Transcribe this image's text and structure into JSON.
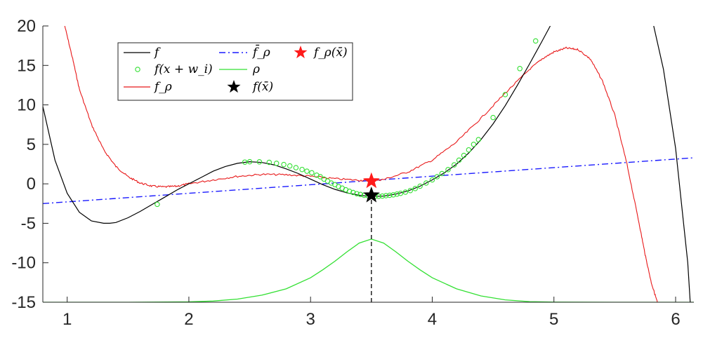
{
  "chart_data": {
    "type": "line",
    "title": "",
    "xlabel": "",
    "ylabel": "",
    "xlim": [
      0.8,
      6.15
    ],
    "ylim": [
      -15,
      20
    ],
    "xticks": [
      1,
      2,
      3,
      4,
      5,
      6
    ],
    "yticks": [
      20,
      15,
      10,
      5,
      0,
      -5,
      -10,
      -15
    ],
    "grid": false,
    "legend_placement": "top-left",
    "x_bar": 3.5,
    "series": [
      {
        "name": "f",
        "legend": "f",
        "color": "#000000",
        "style": "solid",
        "x": [
          0.8,
          0.9,
          1.0,
          1.1,
          1.2,
          1.3,
          1.35,
          1.4,
          1.5,
          1.6,
          1.7,
          1.8,
          1.9,
          2.0,
          2.1,
          2.2,
          2.3,
          2.4,
          2.5,
          2.6,
          2.7,
          2.8,
          2.9,
          3.0,
          3.1,
          3.2,
          3.3,
          3.4,
          3.5,
          3.6,
          3.7,
          3.8,
          3.9,
          4.0,
          4.1,
          4.2,
          4.3,
          4.4,
          4.5,
          4.6,
          4.7,
          4.8,
          4.9,
          4.97
        ],
        "y": [
          9.8,
          3.0,
          -1.2,
          -3.6,
          -4.7,
          -5.0,
          -5.0,
          -4.9,
          -4.3,
          -3.5,
          -2.6,
          -1.7,
          -0.8,
          0.0,
          0.8,
          1.6,
          2.2,
          2.6,
          2.8,
          2.7,
          2.4,
          1.9,
          1.3,
          0.6,
          -0.1,
          -0.7,
          -1.15,
          -1.45,
          -1.6,
          -1.55,
          -1.3,
          -0.9,
          -0.3,
          0.5,
          1.4,
          2.5,
          3.9,
          5.6,
          7.6,
          9.9,
          12.5,
          15.2,
          18.0,
          20.0
        ]
      },
      {
        "name": "f-right",
        "legend": "",
        "color": "#000000",
        "style": "solid",
        "x": [
          5.82,
          5.9,
          6.0,
          6.1,
          6.12
        ],
        "y": [
          20.0,
          14.5,
          4.5,
          -10.0,
          -15.0
        ]
      },
      {
        "name": "f_rho",
        "legend": "f_ρ",
        "color": "#e8191a",
        "style": "solid",
        "x": [
          0.98,
          1.05,
          1.1,
          1.2,
          1.3,
          1.4,
          1.5,
          1.6,
          1.7,
          1.8,
          1.9,
          2.0,
          2.2,
          2.4,
          2.6,
          2.8,
          3.0,
          3.2,
          3.4,
          3.5,
          3.6,
          3.8,
          4.0,
          4.2,
          4.4,
          4.6,
          4.8,
          4.9,
          5.0,
          5.1,
          5.2,
          5.3,
          5.4,
          5.5,
          5.6,
          5.7,
          5.75,
          5.8,
          5.85
        ],
        "y": [
          20.0,
          15.5,
          12.0,
          7.5,
          4.3,
          2.2,
          0.9,
          0.1,
          -0.3,
          -0.4,
          -0.3,
          0.0,
          0.5,
          0.95,
          1.2,
          1.15,
          0.95,
          0.65,
          0.45,
          0.4,
          0.55,
          1.5,
          3.0,
          5.3,
          8.3,
          11.5,
          14.5,
          15.8,
          16.7,
          17.2,
          17.0,
          15.8,
          13.0,
          8.7,
          2.5,
          -5.0,
          -9.0,
          -12.5,
          -15.0
        ]
      },
      {
        "name": "f_rho_bar",
        "legend": "f̄_ρ",
        "color": "#1a1aff",
        "style": "dashdot",
        "x": [
          0.8,
          6.15
        ],
        "y": [
          -2.5,
          3.3
        ]
      },
      {
        "name": "rho",
        "legend": "ρ",
        "color": "#33e033",
        "style": "solid",
        "x": [
          0.8,
          1.5,
          2.0,
          2.2,
          2.4,
          2.6,
          2.8,
          3.0,
          3.1,
          3.2,
          3.3,
          3.4,
          3.5,
          3.6,
          3.7,
          3.8,
          3.9,
          4.0,
          4.2,
          4.4,
          4.6,
          4.8,
          5.0,
          5.5,
          6.15
        ],
        "y": [
          -15.0,
          -15.0,
          -14.95,
          -14.85,
          -14.6,
          -14.1,
          -13.3,
          -11.9,
          -10.9,
          -9.8,
          -8.6,
          -7.5,
          -7.0,
          -7.5,
          -8.6,
          -9.8,
          -10.9,
          -11.9,
          -13.3,
          -14.2,
          -14.7,
          -14.92,
          -14.98,
          -15.0,
          -15.0
        ]
      },
      {
        "name": "samples",
        "legend": "f(x + w_i)",
        "color": "#33e033",
        "style": "markers",
        "x": [
          1.74,
          2.46,
          2.5,
          2.58,
          2.66,
          2.72,
          2.78,
          2.83,
          2.88,
          2.93,
          2.97,
          3.01,
          3.05,
          3.08,
          3.11,
          3.14,
          3.17,
          3.2,
          3.23,
          3.26,
          3.29,
          3.32,
          3.35,
          3.38,
          3.41,
          3.44,
          3.47,
          3.5,
          3.53,
          3.56,
          3.59,
          3.62,
          3.65,
          3.68,
          3.71,
          3.74,
          3.78,
          3.82,
          3.86,
          3.9,
          3.95,
          4.0,
          4.04,
          4.08,
          4.13,
          4.18,
          4.22,
          4.26,
          4.3,
          4.34,
          4.38,
          4.5,
          4.6,
          4.72,
          4.85
        ],
        "y": [
          -2.6,
          2.75,
          2.8,
          2.78,
          2.72,
          2.6,
          2.45,
          2.27,
          2.05,
          1.82,
          1.6,
          1.4,
          1.1,
          0.9,
          0.6,
          0.35,
          0.1,
          -0.1,
          -0.35,
          -0.55,
          -0.75,
          -0.95,
          -1.1,
          -1.25,
          -1.35,
          -1.45,
          -1.5,
          -1.55,
          -1.6,
          -1.58,
          -1.55,
          -1.5,
          -1.45,
          -1.4,
          -1.3,
          -1.2,
          -1.05,
          -0.85,
          -0.6,
          -0.3,
          0.1,
          0.5,
          0.9,
          1.3,
          1.8,
          2.4,
          3.0,
          3.6,
          4.3,
          5.0,
          5.6,
          8.4,
          11.3,
          14.6,
          18.1
        ]
      }
    ],
    "points": [
      {
        "name": "f_rho(x_bar)",
        "legend": "f_ρ(x̄)",
        "x": 3.5,
        "y": 0.35,
        "color": "#ff1a1a"
      },
      {
        "name": "f(x_bar)",
        "legend": "f(x̄)",
        "x": 3.5,
        "y": -1.45,
        "color": "#000000"
      }
    ],
    "dropline": {
      "x": 3.5,
      "y_from": -15,
      "y_to": -1.45,
      "color": "#000000",
      "style": "dashed"
    }
  }
}
